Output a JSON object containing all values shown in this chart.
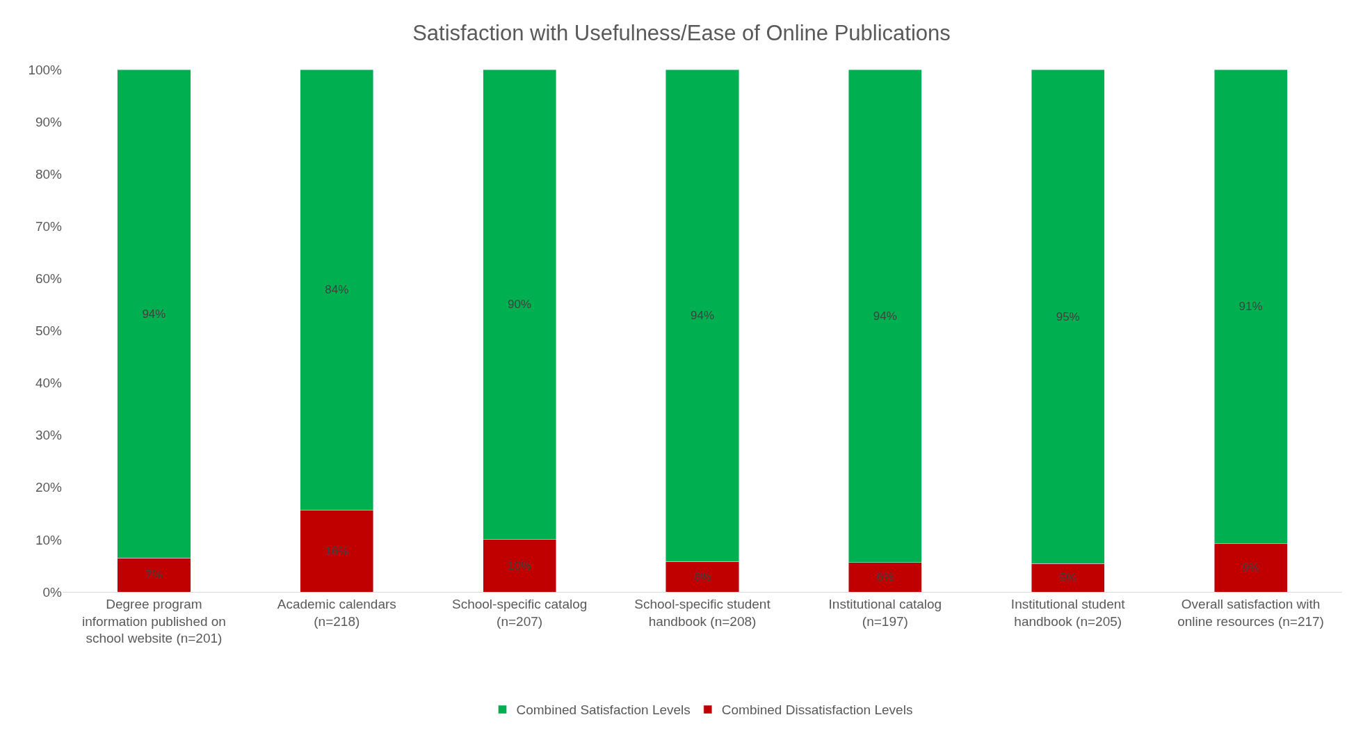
{
  "chart_data": {
    "type": "bar",
    "title": "Satisfaction with Usefulness/Ease of Online Publications",
    "categories": [
      "Degree program information published on school website (n=201)",
      "Academic calendars (n=218)",
      "School-specific catalog (n=207)",
      "School-specific student handbook (n=208)",
      "Institutional catalog (n=197)",
      "Institutional student handbook (n=205)",
      "Overall satisfaction with online resources (n=217)"
    ],
    "stacked": true,
    "series": [
      {
        "name": "Combined Dissatisfaction Levels",
        "color": "#c00000",
        "values": [
          6.5,
          15.6,
          10,
          5.8,
          5.6,
          5.4,
          9.2
        ],
        "value_labels": [
          "7%",
          "16%",
          "10%",
          "6%",
          "6%",
          "5%",
          "9%"
        ]
      },
      {
        "name": "Combined Satisfaction Levels",
        "color": "#00b050",
        "values": [
          93.5,
          84.4,
          90,
          94.2,
          94.4,
          94.6,
          90.8
        ],
        "value_labels": [
          "94%",
          "84%",
          "90%",
          "94%",
          "94%",
          "95%",
          "91%"
        ]
      }
    ],
    "ylim": [
      0,
      100
    ],
    "yticks": [
      {
        "value": 0,
        "label": "0%"
      },
      {
        "value": 10,
        "label": "10%"
      },
      {
        "value": 20,
        "label": "20%"
      },
      {
        "value": 30,
        "label": "30%"
      },
      {
        "value": 40,
        "label": "40%"
      },
      {
        "value": 50,
        "label": "50%"
      },
      {
        "value": 60,
        "label": "60%"
      },
      {
        "value": 70,
        "label": "70%"
      },
      {
        "value": 80,
        "label": "80%"
      },
      {
        "value": 90,
        "label": "90%"
      },
      {
        "value": 100,
        "label": "100%"
      }
    ],
    "grid": false,
    "legend": "bottom"
  }
}
